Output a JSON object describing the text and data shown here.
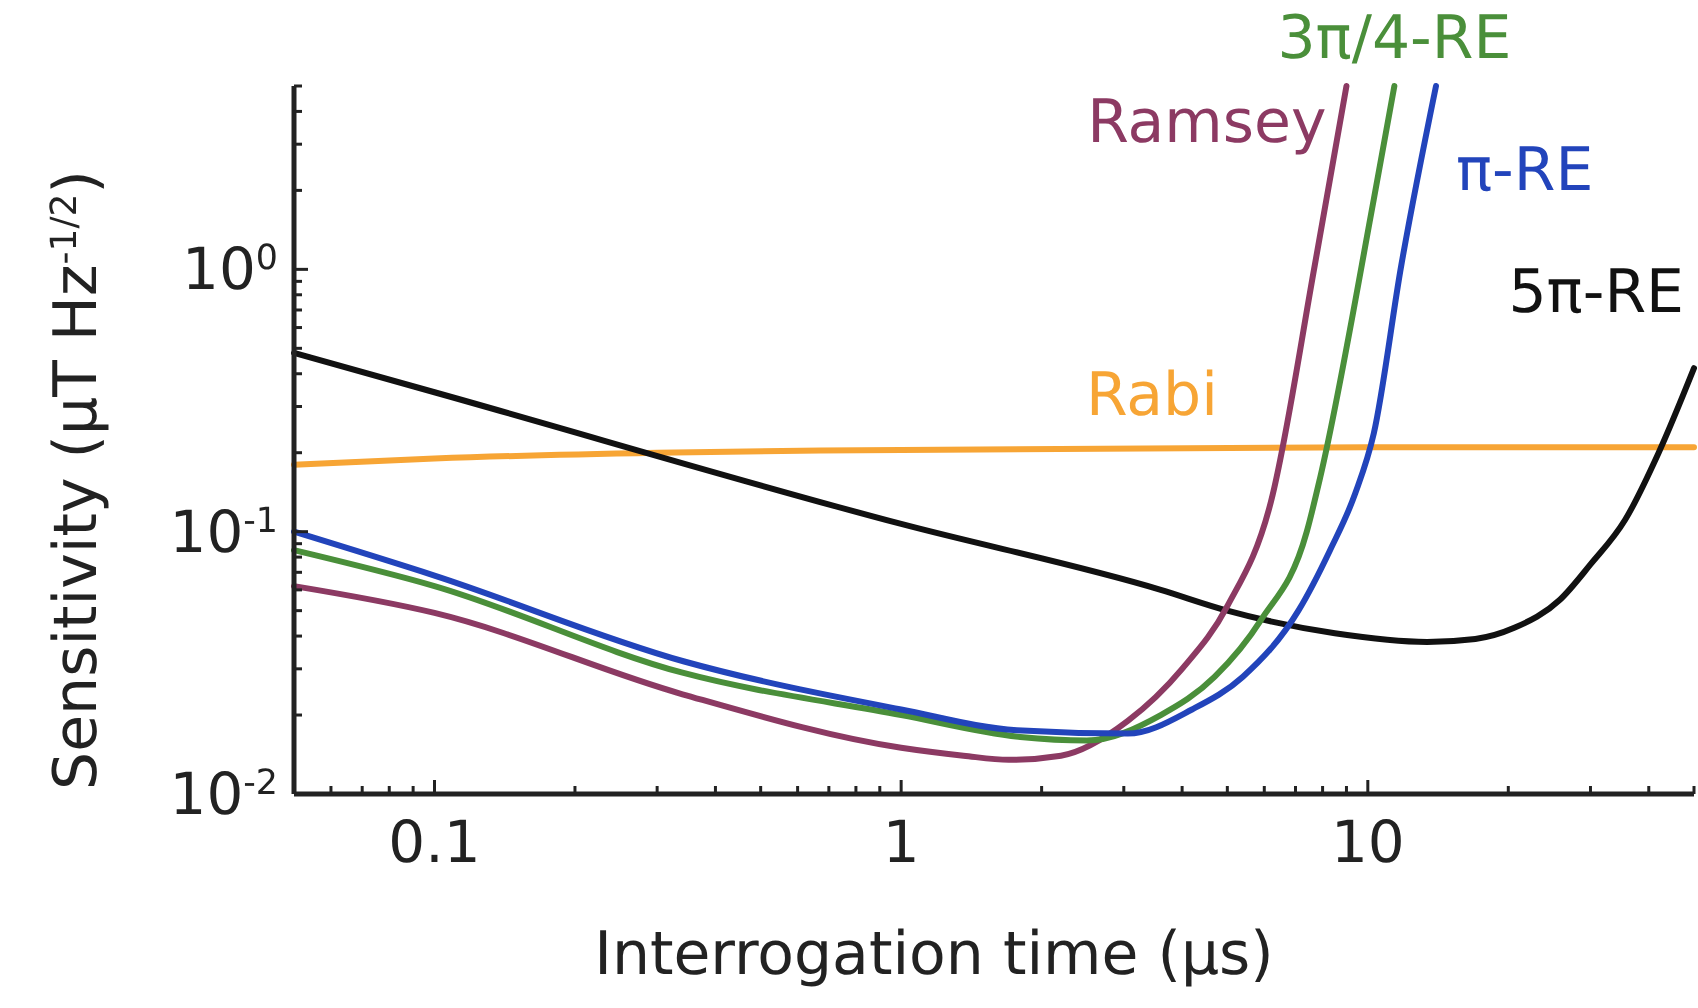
{
  "chart_data": {
    "type": "line",
    "xlabel": "Interrogation time (μs)",
    "ylabel": "Sensitivity (μT Hz$^{-1/2}$)",
    "log": "xy",
    "xlim": [
      0.05,
      50
    ],
    "ylim": [
      0.01,
      5
    ],
    "xticks": [
      {
        "value": 0.06,
        "label": null
      },
      {
        "value": 0.07,
        "label": null
      },
      {
        "value": 0.08,
        "label": null
      },
      {
        "value": 0.09,
        "label": null
      },
      0.1,
      {
        "value": 0.2,
        "label": null
      },
      {
        "value": 0.3,
        "label": null
      },
      {
        "value": 0.4,
        "label": null
      },
      {
        "value": 0.5,
        "label": null
      },
      {
        "value": 0.6,
        "label": null
      },
      {
        "value": 0.7,
        "label": null
      },
      {
        "value": 0.8,
        "label": null
      },
      {
        "value": 0.9,
        "label": null
      },
      1,
      {
        "value": 2,
        "label": null
      },
      {
        "value": 3,
        "label": null
      },
      {
        "value": 4,
        "label": null
      },
      {
        "value": 5,
        "label": null
      },
      {
        "value": 6,
        "label": null
      },
      {
        "value": 7,
        "label": null
      },
      {
        "value": 8,
        "label": null
      },
      {
        "value": 9,
        "label": null
      },
      10,
      {
        "value": 20,
        "label": null
      },
      {
        "value": 30,
        "label": null
      },
      {
        "value": 40,
        "label": null
      },
      {
        "value": 50,
        "label": null
      }
    ],
    "yticks": [
      {
        "value": 0.01,
        "label": "10$^{-2}$"
      },
      {
        "value": 0.02,
        "label": null
      },
      {
        "value": 0.03,
        "label": null
      },
      {
        "value": 0.04,
        "label": null
      },
      {
        "value": 0.05,
        "label": null
      },
      {
        "value": 0.06,
        "label": null
      },
      {
        "value": 0.07,
        "label": null
      },
      {
        "value": 0.08,
        "label": null
      },
      {
        "value": 0.09,
        "label": null
      },
      {
        "value": 0.1,
        "label": "10$^{-1}$"
      },
      {
        "value": 0.2,
        "label": null
      },
      {
        "value": 0.3,
        "label": null
      },
      {
        "value": 0.4,
        "label": null
      },
      {
        "value": 0.5,
        "label": null
      },
      {
        "value": 0.6,
        "label": null
      },
      {
        "value": 0.7,
        "label": null
      },
      {
        "value": 0.8,
        "label": null
      },
      {
        "value": 0.9,
        "label": null
      },
      {
        "value": 1,
        "label": "10$^{0}$"
      },
      {
        "value": 2,
        "label": null
      },
      {
        "value": 3,
        "label": null
      },
      {
        "value": 4,
        "label": null
      },
      {
        "value": 5,
        "label": null
      }
    ],
    "grid": false,
    "marker": "none",
    "line_style": "solid",
    "series": [
      {
        "name": "Rabi",
        "color": "#f7a535",
        "x": [
          0.05,
          0.1,
          0.3,
          1,
          10,
          50
        ],
        "values": [
          0.18,
          0.19,
          0.2,
          0.205,
          0.21,
          0.21
        ]
      },
      {
        "name": "5π-RE",
        "color": "#111111",
        "x": [
          0.05,
          0.1,
          1,
          3.6,
          5,
          8.5,
          13.4,
          17,
          20.6,
          25.8,
          30,
          35.6,
          42,
          50
        ],
        "values": [
          0.48,
          0.34,
          0.107,
          0.06,
          0.05,
          0.041,
          0.038,
          0.039,
          0.043,
          0.055,
          0.075,
          0.111,
          0.2,
          0.42
        ]
      },
      {
        "name": "Ramsey",
        "color": "#8c3a63",
        "x": [
          0.05,
          0.1,
          0.34,
          1,
          1.36,
          1.7,
          2.2,
          3.06,
          4,
          5,
          6.2,
          7.7,
          9
        ],
        "values": [
          0.062,
          0.049,
          0.024,
          0.015,
          0.014,
          0.0135,
          0.014,
          0.019,
          0.03,
          0.052,
          0.13,
          1.04,
          5
        ]
      },
      {
        "name": "3π/4-RE",
        "color": "#4a8f3a",
        "x": [
          0.05,
          0.1,
          0.34,
          1,
          1.8,
          2.5,
          3.6,
          4.7,
          5.9,
          7.4,
          7.9,
          10.3,
          11.4
        ],
        "values": [
          0.085,
          0.062,
          0.029,
          0.02,
          0.0165,
          0.016,
          0.02,
          0.028,
          0.046,
          0.1,
          0.16,
          1.85,
          5
        ]
      },
      {
        "name": "π-RE",
        "color": "#2244bb",
        "x": [
          0.05,
          0.1,
          0.343,
          1,
          1.77,
          3.06,
          4.2,
          5.4,
          7.1,
          8.3,
          9.4,
          10.3,
          11.8,
          14
        ],
        "values": [
          0.1,
          0.068,
          0.032,
          0.021,
          0.0175,
          0.017,
          0.021,
          0.028,
          0.05,
          0.085,
          0.14,
          0.237,
          1.04,
          5
        ]
      }
    ]
  }
}
